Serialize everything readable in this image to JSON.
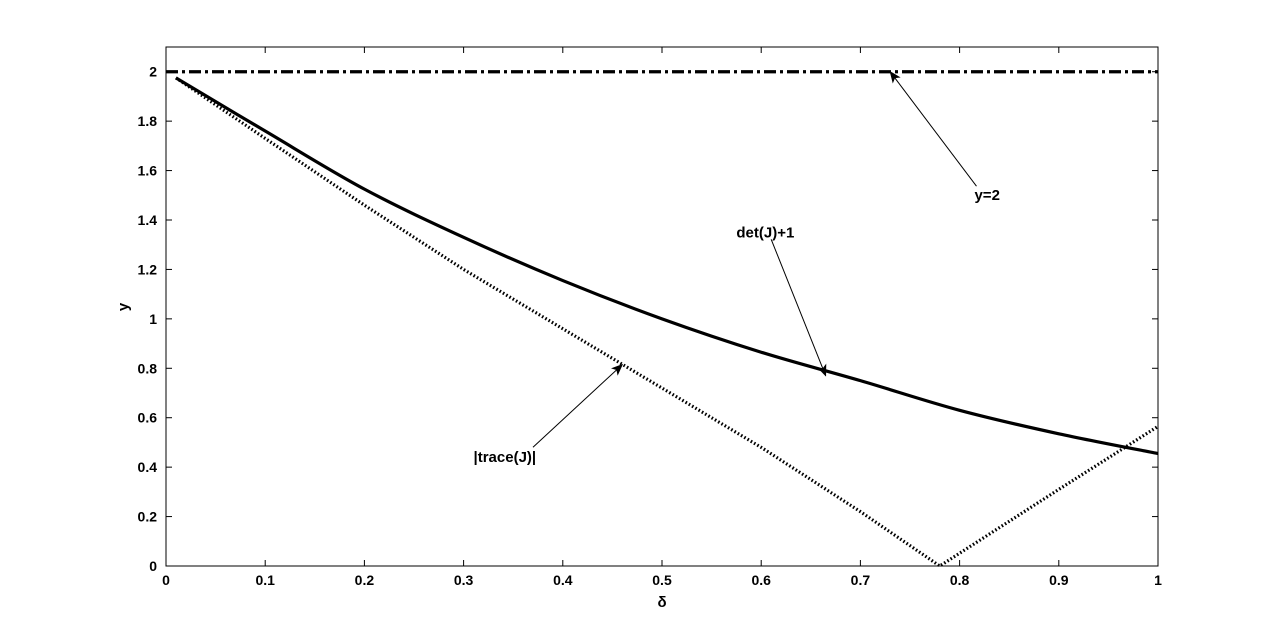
{
  "chart_data": {
    "type": "line",
    "title": "",
    "xlabel": "δ",
    "ylabel": "y",
    "xlim": [
      0,
      1
    ],
    "ylim": [
      0,
      2.1
    ],
    "xticks": [
      0,
      0.1,
      0.2,
      0.3,
      0.4,
      0.5,
      0.6,
      0.7,
      0.8,
      0.9,
      1
    ],
    "xtick_labels": [
      "0",
      "0.1",
      "0.2",
      "0.3",
      "0.4",
      "0.5",
      "0.6",
      "0.7",
      "0.8",
      "0.9",
      "1"
    ],
    "yticks": [
      0,
      0.2,
      0.4,
      0.6,
      0.8,
      1,
      1.2,
      1.4,
      1.6,
      1.8,
      2
    ],
    "ytick_labels": [
      "0",
      "0.2",
      "0.4",
      "0.6",
      "0.8",
      "1",
      "1.2",
      "1.4",
      "1.6",
      "1.8",
      "2"
    ],
    "grid": false,
    "legend": "none",
    "series": [
      {
        "style": "solid",
        "color": "#000000",
        "x": [
          0.01,
          0.1,
          0.2,
          0.3,
          0.4,
          0.5,
          0.6,
          0.7,
          0.8,
          0.9,
          1.0
        ],
        "y": [
          1.975,
          1.76,
          1.525,
          1.33,
          1.155,
          1.0,
          0.865,
          0.75,
          0.63,
          0.535,
          0.455
        ]
      },
      {
        "style": "dotted",
        "color": "#000000",
        "x": [
          0.01,
          0.1,
          0.2,
          0.3,
          0.4,
          0.5,
          0.6,
          0.7,
          0.78,
          0.9,
          1.0
        ],
        "y": [
          1.975,
          1.73,
          1.46,
          1.2,
          0.96,
          0.72,
          0.48,
          0.22,
          0.0,
          0.31,
          0.565
        ]
      },
      {
        "style": "dashdot",
        "color": "#000000",
        "x": [
          0,
          1
        ],
        "y": [
          2,
          2
        ]
      }
    ],
    "annotations": [
      {
        "text": "y=2",
        "text_at": [
          0.815,
          1.48
        ],
        "arrow_to": [
          0.73,
          2.0
        ]
      },
      {
        "text": "det(J)+1",
        "text_at": [
          0.575,
          1.33
        ],
        "arrow_to": [
          0.665,
          0.77
        ]
      },
      {
        "text": "|trace(J)|",
        "text_at": [
          0.31,
          0.42
        ],
        "arrow_to": [
          0.46,
          0.815
        ]
      }
    ]
  }
}
